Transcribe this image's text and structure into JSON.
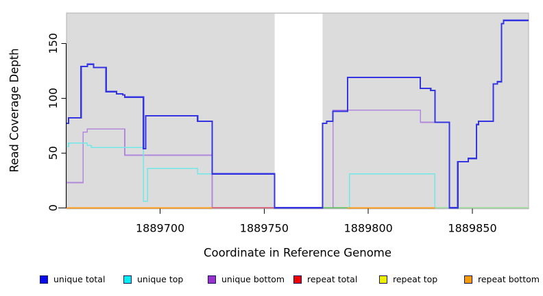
{
  "chart_data": {
    "type": "line",
    "title": "",
    "xlabel": "Coordinate in Reference Genome",
    "ylabel": "Read Coverage Depth",
    "xlim": [
      1889655,
      1889877
    ],
    "ylim": [
      0,
      178
    ],
    "x_ticks": [
      1889700,
      1889750,
      1889800,
      1889850
    ],
    "y_ticks": [
      0,
      50,
      100,
      150
    ],
    "grid": false,
    "legend_position": "bottom",
    "panel_bg": "#DCDCDC",
    "panel_border": "#B0B0B0",
    "axis_color": "#000000",
    "text_color": "#000000",
    "gap_region": {
      "x0": 1889755,
      "x1": 1889778,
      "color": "#FFFFFF"
    },
    "series": [
      {
        "name": "unique total",
        "color": "#3434E0",
        "legend_color": "#0A0AEE",
        "width": 2.2,
        "segments": [
          [
            1889655,
            1889656,
            77
          ],
          [
            1889656,
            1889662,
            82
          ],
          [
            1889662,
            1889665,
            129
          ],
          [
            1889665,
            1889668,
            131
          ],
          [
            1889668,
            1889674,
            128
          ],
          [
            1889674,
            1889679,
            106
          ],
          [
            1889679,
            1889682,
            104
          ],
          [
            1889682,
            1889683,
            103
          ],
          [
            1889683,
            1889692,
            101
          ],
          [
            1889692,
            1889693,
            54
          ],
          [
            1889693,
            1889718,
            84
          ],
          [
            1889718,
            1889725,
            79
          ],
          [
            1889725,
            1889755,
            31
          ],
          [
            1889755,
            1889778,
            0
          ],
          [
            1889778,
            1889780,
            77
          ],
          [
            1889780,
            1889783,
            79
          ],
          [
            1889783,
            1889790,
            88
          ],
          [
            1889790,
            1889825,
            119
          ],
          [
            1889825,
            1889830,
            109
          ],
          [
            1889830,
            1889832,
            107
          ],
          [
            1889832,
            1889839,
            78
          ],
          [
            1889839,
            1889843,
            0
          ],
          [
            1889843,
            1889848,
            42
          ],
          [
            1889848,
            1889852,
            45
          ],
          [
            1889852,
            1889853,
            76
          ],
          [
            1889853,
            1889860,
            79
          ],
          [
            1889860,
            1889862,
            113
          ],
          [
            1889862,
            1889864,
            115
          ],
          [
            1889864,
            1889865,
            168
          ],
          [
            1889865,
            1889877,
            171
          ]
        ]
      },
      {
        "name": "unique top",
        "color": "#70E8E8",
        "legend_color": "#00EEEE",
        "width": 1.6,
        "segments": [
          [
            1889655,
            1889656,
            56
          ],
          [
            1889656,
            1889665,
            59
          ],
          [
            1889665,
            1889667,
            57
          ],
          [
            1889667,
            1889692,
            55
          ],
          [
            1889692,
            1889694,
            6
          ],
          [
            1889694,
            1889718,
            36
          ],
          [
            1889718,
            1889755,
            31
          ],
          [
            1889755,
            1889791,
            0
          ],
          [
            1889791,
            1889832,
            31
          ],
          [
            1889832,
            1889877,
            0
          ]
        ]
      },
      {
        "name": "unique bottom",
        "color": "#B288DD",
        "legend_color": "#9A32CD",
        "width": 1.6,
        "segments": [
          [
            1889655,
            1889663,
            23
          ],
          [
            1889663,
            1889665,
            69
          ],
          [
            1889665,
            1889683,
            72
          ],
          [
            1889683,
            1889725,
            48
          ],
          [
            1889725,
            1889783,
            0
          ],
          [
            1889783,
            1889825,
            89
          ],
          [
            1889825,
            1889839,
            78
          ],
          [
            1889839,
            1889877,
            0
          ]
        ]
      },
      {
        "name": "repeat total",
        "color": "#D84A66",
        "legend_color": "#EE0000",
        "width": 1.5,
        "segments": [
          [
            1889725,
            1889755,
            0
          ]
        ]
      },
      {
        "name": "repeat top",
        "color": "#F0D040",
        "legend_color": "#EEEE00",
        "width": 1.6,
        "segments": [
          [
            1889722,
            1889725,
            0
          ]
        ]
      },
      {
        "name": "repeat bottom",
        "color": "#FF9D1C",
        "legend_color": "#F59B0F",
        "width": 2,
        "segments": [
          [
            1889655,
            1889725,
            0
          ],
          [
            1889790,
            1889832,
            0
          ]
        ]
      }
    ],
    "baseline_segments": [
      {
        "name": "segment",
        "color": "#57C157",
        "x0": 1889778,
        "x1": 1889790,
        "y": 0
      },
      {
        "name": "segment",
        "color": "#94DB94",
        "x0": 1889832,
        "x1": 1889877,
        "y": 0
      }
    ]
  }
}
